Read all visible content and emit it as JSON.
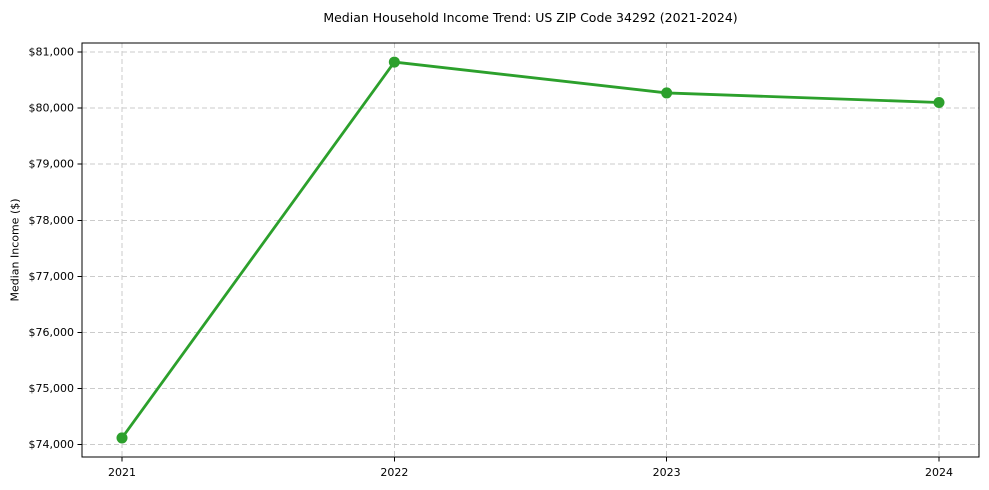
{
  "chart_data": {
    "type": "line",
    "title": "Median Household Income Trend: US ZIP Code 34292 (2021-2024)",
    "xlabel": "",
    "ylabel": "Median Income ($)",
    "categories": [
      "2021",
      "2022",
      "2023",
      "2024"
    ],
    "series": [
      {
        "name": "median-household-income",
        "values": [
          74120,
          80820,
          80270,
          80100
        ],
        "color": "#2ca02c",
        "marker": "circle",
        "marker_radius": 5.5,
        "line_width": 2.8
      }
    ],
    "yticks": [
      74000,
      75000,
      76000,
      77000,
      78000,
      79000,
      80000,
      81000
    ],
    "ytick_labels": [
      "$74,000",
      "$75,000",
      "$76,000",
      "$77,000",
      "$78,000",
      "$79,000",
      "$80,000",
      "$81,000"
    ],
    "ylim": [
      73780,
      81160
    ],
    "grid": true,
    "grid_style": "dashed",
    "grid_color": "#cbcbcb",
    "spine_color": "#000000",
    "background": "#ffffff",
    "legend": "none"
  }
}
